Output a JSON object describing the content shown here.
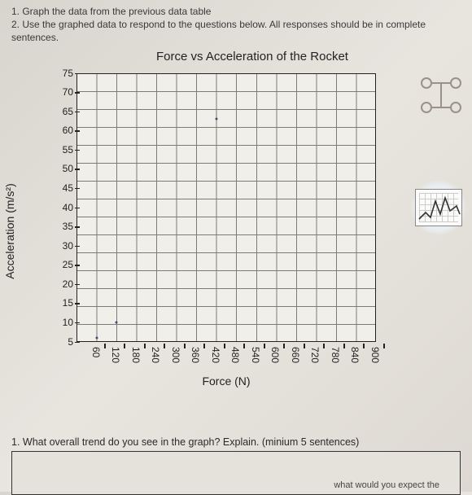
{
  "instructions": {
    "line1": "1. Graph the data from the previous data table",
    "line2": "2. Use the graphed data to respond to the questions below. All responses should be in complete sentences."
  },
  "chart": {
    "type": "scatter-grid",
    "title": "Force vs Acceleration of the Rocket",
    "xlabel": "Force (N)",
    "ylabel": "Acceleration (m/s²)",
    "ylim": [
      5,
      75
    ],
    "ytick_step": 5,
    "yticks": [
      75,
      70,
      65,
      60,
      55,
      50,
      45,
      40,
      35,
      30,
      25,
      20,
      15,
      10,
      5
    ],
    "xlim": [
      60,
      900
    ],
    "xtick_step": 60,
    "xticks": [
      60,
      120,
      180,
      240,
      300,
      360,
      420,
      480,
      540,
      600,
      660,
      720,
      780,
      840,
      900
    ],
    "grid_color": "#555555",
    "background_color": "#f1efe9",
    "axis_color": "#222222",
    "tick_fontsize": 12,
    "label_fontsize": 14,
    "title_fontsize": 15,
    "xtick_rotation": 90,
    "plotted_points": [
      {
        "x": 60,
        "y": 6
      },
      {
        "x": 120,
        "y": 10
      },
      {
        "x": 420,
        "y": 63
      }
    ],
    "point_color": "#4a4a6a",
    "n_x_cells": 15,
    "n_y_cells": 15
  },
  "question": {
    "number": "1.",
    "text": "What overall trend do you see in the graph? Explain. (minium 5 sentences)"
  },
  "cutoff_text": "what would you expect the",
  "decor": {
    "dumbbell_color": "#9a9288",
    "mini_chart_line_color": "#333333"
  }
}
